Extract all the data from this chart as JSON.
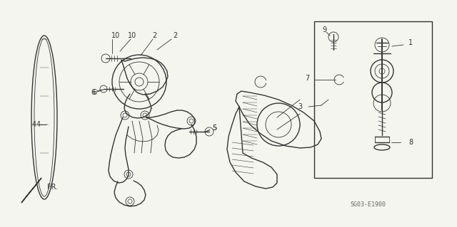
{
  "bg_color": "#f5f5f0",
  "line_color": "#333333",
  "fig_width": 6.4,
  "fig_height": 3.19,
  "dpi": 100,
  "watermark_text": "SG03-E1900",
  "fr_label": "FR.",
  "label_fs": 7,
  "note_fs": 6
}
